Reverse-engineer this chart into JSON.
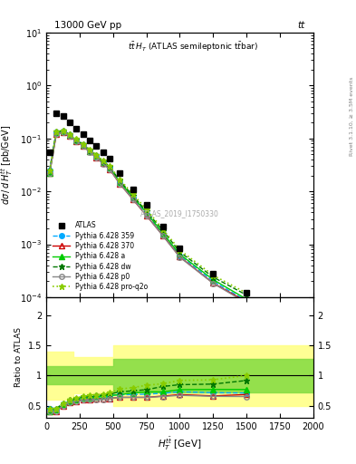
{
  "title_top": "13000 GeV pp",
  "title_top_right": "tt",
  "title_inner": "tt̅T (ATLAS semileptonic t̅tbar)",
  "watermark": "ATLAS_2019_I1750330",
  "rivet_label": "Rivet 3.1.10, ≥ 3.5M events",
  "ylabel_main": "dσ / d H_T^{tbar{t}} [pb/GeV]",
  "ylabel_ratio": "Ratio to ATLAS",
  "xlabel": "H_T^{tbar{t}} [GeV]",
  "xlim": [
    0,
    2000
  ],
  "ylim_main": [
    0.0001,
    10
  ],
  "ylim_ratio": [
    0.3,
    2.3
  ],
  "ratio_yticks": [
    0.5,
    1.0,
    1.5,
    2.0
  ],
  "x_centers": [
    25,
    75,
    125,
    175,
    225,
    275,
    325,
    375,
    425,
    475,
    550,
    650,
    750,
    875,
    1000,
    1250,
    1500
  ],
  "atlas_y": [
    0.055,
    0.3,
    0.26,
    0.2,
    0.155,
    0.12,
    0.093,
    0.072,
    0.055,
    0.042,
    0.022,
    0.011,
    0.0055,
    0.0022,
    0.00085,
    0.00028,
    0.00012
  ],
  "py359_y": [
    0.025,
    0.13,
    0.135,
    0.115,
    0.092,
    0.075,
    0.058,
    0.046,
    0.036,
    0.028,
    0.015,
    0.0075,
    0.0038,
    0.00155,
    0.00062,
    0.0002,
    8.5e-05
  ],
  "py370_y": [
    0.022,
    0.12,
    0.13,
    0.11,
    0.089,
    0.072,
    0.056,
    0.044,
    0.034,
    0.026,
    0.014,
    0.007,
    0.0035,
    0.00145,
    0.00058,
    0.000185,
    8.2e-05
  ],
  "pya_y": [
    0.022,
    0.13,
    0.135,
    0.115,
    0.093,
    0.075,
    0.058,
    0.046,
    0.036,
    0.028,
    0.015,
    0.0078,
    0.004,
    0.0016,
    0.00065,
    0.000215,
    9.2e-05
  ],
  "pydw_y": [
    0.025,
    0.135,
    0.14,
    0.12,
    0.096,
    0.078,
    0.06,
    0.048,
    0.037,
    0.029,
    0.016,
    0.0082,
    0.0042,
    0.0018,
    0.00072,
    0.00024,
    0.00011
  ],
  "pyp0_y": [
    0.022,
    0.12,
    0.13,
    0.11,
    0.088,
    0.071,
    0.055,
    0.043,
    0.033,
    0.026,
    0.014,
    0.007,
    0.0035,
    0.00143,
    0.00057,
    0.000183,
    7.8e-05
  ],
  "pyq2o_y": [
    0.025,
    0.135,
    0.14,
    0.12,
    0.097,
    0.079,
    0.062,
    0.049,
    0.038,
    0.03,
    0.017,
    0.0088,
    0.0046,
    0.0019,
    0.00078,
    0.00026,
    0.00012
  ],
  "band_x": [
    0,
    100,
    200,
    300,
    400,
    500,
    700,
    900,
    1100,
    2000
  ],
  "band_green_lo": [
    0.85,
    0.85,
    0.85,
    0.85,
    0.85,
    0.72,
    0.72,
    0.72,
    0.72,
    0.72
  ],
  "band_green_hi": [
    1.15,
    1.15,
    1.15,
    1.15,
    1.15,
    1.28,
    1.28,
    1.28,
    1.28,
    1.28
  ],
  "band_yellow_lo": [
    0.6,
    0.6,
    0.7,
    0.7,
    0.7,
    0.5,
    0.5,
    0.5,
    0.5,
    0.5
  ],
  "band_yellow_hi": [
    1.4,
    1.4,
    1.3,
    1.3,
    1.3,
    1.5,
    1.5,
    1.5,
    1.5,
    1.5
  ],
  "color_atlas": "#000000",
  "color_py359": "#00aaff",
  "color_py370": "#cc0000",
  "color_pya": "#00cc00",
  "color_pydw": "#007700",
  "color_pyp0": "#888888",
  "color_pyq2o": "#88cc00"
}
